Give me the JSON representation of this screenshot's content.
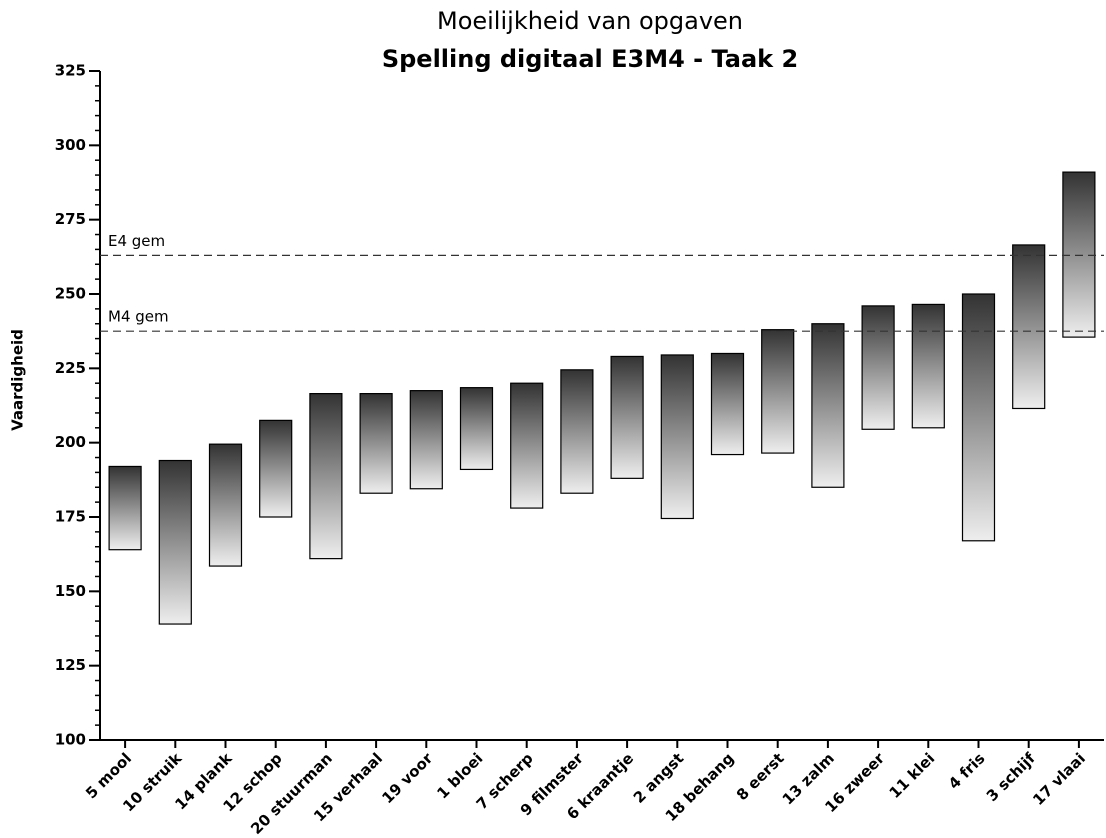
{
  "chart_data": {
    "type": "floating-bar",
    "title": "Moeilijkheid van opgaven",
    "subtitle": "Spelling digitaal E3M4 - Taak 2",
    "y_label": "Vaardigheid",
    "categories": [
      "5 mool",
      "10 struik",
      "14 plank",
      "12 schop",
      "20 stuurman",
      "15 verhaal",
      "19 voor",
      "1 bloei",
      "7 scherp",
      "9 filmster",
      "6 kraantje",
      "2 angst",
      "18 behang",
      "8 eerst",
      "13 zalm",
      "16 zweer",
      "11 klei",
      "4 fris",
      "3 schijf",
      "17 vlaai"
    ],
    "low": [
      164,
      139,
      158.5,
      175,
      161,
      183,
      184.5,
      191,
      178,
      183,
      188,
      174.5,
      196,
      196.5,
      185,
      204.5,
      205,
      167,
      211.5,
      235.5
    ],
    "high": [
      192,
      194,
      199.5,
      207.5,
      216.5,
      216.5,
      217.5,
      218.5,
      220,
      224.5,
      229,
      229.5,
      230,
      238,
      240,
      246,
      246.5,
      250,
      266.5,
      291
    ],
    "ylim": [
      100,
      325
    ],
    "yticks": [
      100,
      125,
      150,
      175,
      200,
      225,
      250,
      275,
      300,
      325
    ],
    "yminor": 5,
    "reference_lines": [
      {
        "label": "E4 gem",
        "value": 263
      },
      {
        "label": "M4 gem",
        "value": 237.5
      }
    ]
  }
}
